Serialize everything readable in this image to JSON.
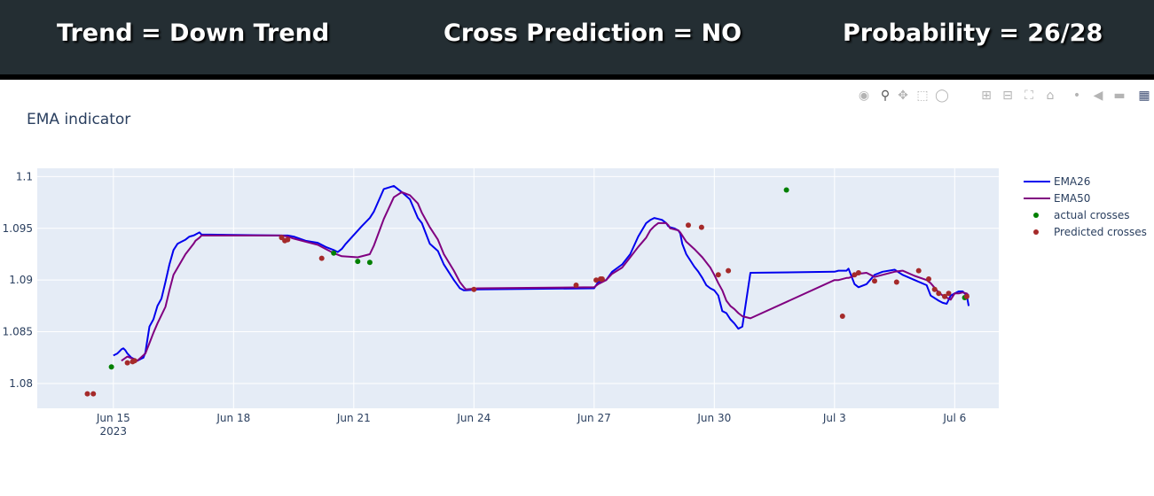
{
  "banner": {
    "trend": "Trend = Down Trend",
    "cross_prediction": "Cross Prediction = NO",
    "probability": "Probability = 26/28"
  },
  "modebar": {
    "icons": [
      "camera-icon",
      "zoom-icon",
      "pan-icon",
      "box-select-icon",
      "lasso-icon",
      "zoom-in-icon",
      "zoom-out-icon",
      "autoscale-icon",
      "reset-axes-icon",
      "spike-lines-icon",
      "hover-closest-icon",
      "hover-compare-icon",
      "plotly-logo-icon"
    ]
  },
  "colors": {
    "ema26": "#0000ee",
    "ema50": "#800080",
    "actual": "#008000",
    "predicted": "#a52a2a",
    "plot_bg": "#e5ecf6",
    "grid": "#ffffff"
  },
  "chart_data": {
    "type": "line",
    "title": "EMA indicator",
    "xlabel": "",
    "ylabel": "",
    "x_axis": {
      "unit": "day offset from Jun 15, 2023",
      "range": [
        -1.9,
        22.1
      ],
      "ticks": [
        {
          "x": 0,
          "label": "Jun 15",
          "sublabel": "2023"
        },
        {
          "x": 3,
          "label": "Jun 18",
          "sublabel": ""
        },
        {
          "x": 6,
          "label": "Jun 21",
          "sublabel": ""
        },
        {
          "x": 9,
          "label": "Jun 24",
          "sublabel": ""
        },
        {
          "x": 12,
          "label": "Jun 27",
          "sublabel": ""
        },
        {
          "x": 15,
          "label": "Jun 30",
          "sublabel": ""
        },
        {
          "x": 18,
          "label": "Jul 3",
          "sublabel": ""
        },
        {
          "x": 21,
          "label": "Jul 6",
          "sublabel": ""
        }
      ]
    },
    "y_axis": {
      "range": [
        1.0776,
        1.1008
      ],
      "ticks": [
        {
          "y": 1.08,
          "label": "1.08"
        },
        {
          "y": 1.085,
          "label": "1.085"
        },
        {
          "y": 1.09,
          "label": "1.09"
        },
        {
          "y": 1.095,
          "label": "1.095"
        },
        {
          "y": 1.1,
          "label": "1.1"
        }
      ]
    },
    "legend": {
      "position": "right",
      "entries": [
        "EMA26",
        "EMA50",
        "actual crosses",
        "Predicted crosses"
      ]
    },
    "series": [
      {
        "name": "EMA26",
        "kind": "line",
        "x": [
          0,
          0.1,
          0.15,
          0.2,
          0.25,
          0.3,
          0.35,
          0.45,
          0.5,
          0.6,
          0.7,
          0.75,
          0.8,
          0.9,
          1,
          1.1,
          1.2,
          1.3,
          1.4,
          1.5,
          1.6,
          1.7,
          1.8,
          1.9,
          2,
          2.05,
          2.15,
          2.2,
          4.2,
          4.35,
          4.5,
          4.8,
          5.1,
          5.3,
          5.5,
          5.6,
          5.7,
          5.8,
          6.2,
          6.4,
          6.5,
          6.75,
          7,
          7.2,
          7.4,
          7.6,
          7.7,
          7.8,
          7.9,
          8.1,
          8.25,
          8.5,
          8.65,
          8.75,
          8.8,
          9.1,
          12,
          12.1,
          12.3,
          12.45,
          12.7,
          12.9,
          13.1,
          13.3,
          13.4,
          13.5,
          13.6,
          13.7,
          13.8,
          13.85,
          13.9,
          14,
          14.1,
          14.15,
          14.2,
          14.3,
          14.4,
          14.5,
          14.6,
          14.7,
          14.8,
          14.9,
          15,
          15.1,
          15.2,
          15.3,
          15.4,
          15.5,
          15.6,
          15.7,
          15.9,
          18,
          18.1,
          18.3,
          18.35,
          18.5,
          18.6,
          18.8,
          19,
          19.2,
          19.5,
          19.7,
          20,
          20.3,
          20.4,
          20.6,
          20.7,
          20.8,
          20.9,
          21,
          21.1,
          21.2,
          21.3,
          21.35
        ],
        "y": [
          1.0827,
          1.0829,
          1.0831,
          1.0833,
          1.0834,
          1.0832,
          1.0829,
          1.0825,
          1.0824,
          1.0822,
          1.0824,
          1.0825,
          1.083,
          1.0855,
          1.0862,
          1.0875,
          1.0882,
          1.0898,
          1.0915,
          1.0929,
          1.0935,
          1.0937,
          1.0939,
          1.0942,
          1.0943,
          1.0944,
          1.0946,
          1.0944,
          1.0943,
          1.0943,
          1.0942,
          1.0938,
          1.0936,
          1.0932,
          1.0929,
          1.0927,
          1.093,
          1.0935,
          1.0952,
          1.096,
          1.0966,
          1.0988,
          1.0991,
          1.0985,
          1.0978,
          1.096,
          1.0955,
          1.0945,
          1.0935,
          1.0928,
          1.0915,
          1.09,
          1.0892,
          1.089,
          1.089,
          1.0891,
          1.0892,
          1.0898,
          1.09,
          1.0908,
          1.0915,
          1.0925,
          1.0942,
          1.0955,
          1.0958,
          1.096,
          1.0959,
          1.0958,
          1.0955,
          1.0952,
          1.0951,
          1.095,
          1.0948,
          1.0945,
          1.0935,
          1.0925,
          1.0919,
          1.0913,
          1.0908,
          1.0902,
          1.0895,
          1.0892,
          1.089,
          1.0885,
          1.087,
          1.0868,
          1.0862,
          1.0858,
          1.0853,
          1.0855,
          1.0907,
          1.0908,
          1.0909,
          1.0909,
          1.0911,
          1.0896,
          1.0893,
          1.0896,
          1.0905,
          1.0908,
          1.091,
          1.0905,
          1.09,
          1.0895,
          1.0885,
          1.088,
          1.0878,
          1.0877,
          1.0885,
          1.0887,
          1.0889,
          1.0889,
          1.0885,
          1.0875
        ]
      },
      {
        "name": "EMA50",
        "kind": "line",
        "x": [
          0.2,
          0.35,
          0.6,
          0.8,
          0.9,
          1,
          1.1,
          1.3,
          1.4,
          1.5,
          1.8,
          2,
          2.05,
          2.15,
          2.2,
          4.2,
          4.35,
          4.5,
          4.8,
          5.1,
          5.3,
          5.5,
          5.7,
          6.1,
          6.4,
          6.5,
          6.75,
          7,
          7.2,
          7.4,
          7.6,
          7.7,
          7.8,
          7.9,
          8.1,
          8.25,
          8.5,
          8.65,
          8.75,
          8.8,
          9.1,
          12,
          12.1,
          12.3,
          12.45,
          12.7,
          12.9,
          13.1,
          13.3,
          13.4,
          13.5,
          13.6,
          13.7,
          13.8,
          13.85,
          13.9,
          14,
          14.1,
          14.15,
          14.2,
          14.3,
          14.5,
          14.7,
          14.9,
          15,
          15.1,
          15.2,
          15.3,
          15.4,
          15.5,
          15.6,
          15.7,
          15.9,
          18,
          18.1,
          18.3,
          18.35,
          18.5,
          18.6,
          18.8,
          19,
          19.2,
          19.5,
          19.7,
          20,
          20.3,
          20.4,
          20.6,
          20.7,
          20.8,
          20.9,
          21,
          21.1,
          21.2,
          21.3,
          21.35
        ],
        "y": [
          1.0822,
          1.0826,
          1.0822,
          1.0829,
          1.0839,
          1.0849,
          1.0858,
          1.0874,
          1.089,
          1.0905,
          1.0925,
          1.0935,
          1.0938,
          1.0941,
          1.0943,
          1.0943,
          1.0942,
          1.094,
          1.0937,
          1.0934,
          1.093,
          1.0926,
          1.0923,
          1.0922,
          1.0925,
          1.0933,
          1.0959,
          1.098,
          1.0985,
          1.0982,
          1.0974,
          1.0965,
          1.0958,
          1.0951,
          1.0939,
          1.0925,
          1.0909,
          1.0898,
          1.0893,
          1.0891,
          1.0892,
          1.0893,
          1.0896,
          1.09,
          1.0906,
          1.0912,
          1.0922,
          1.0932,
          1.0941,
          1.0948,
          1.0952,
          1.0955,
          1.0955,
          1.0955,
          1.0953,
          1.095,
          1.0949,
          1.0948,
          1.0946,
          1.0943,
          1.0937,
          1.093,
          1.0922,
          1.0912,
          1.0905,
          1.0897,
          1.089,
          1.088,
          1.0875,
          1.0872,
          1.0868,
          1.0865,
          1.0863,
          1.09,
          1.09,
          1.0902,
          1.0902,
          1.0904,
          1.0906,
          1.0907,
          1.0903,
          1.0905,
          1.0908,
          1.0909,
          1.0904,
          1.09,
          1.0897,
          1.0888,
          1.0885,
          1.0883,
          1.0881,
          1.0887,
          1.0887,
          1.0888,
          1.0887,
          1.0885
        ]
      },
      {
        "name": "actual crosses",
        "kind": "markers",
        "x": [
          -0.05,
          5.5,
          6.1,
          6.4,
          16.8,
          21.25
        ],
        "y": [
          1.0816,
          1.0926,
          1.0918,
          1.0917,
          1.0987,
          1.0883
        ]
      },
      {
        "name": "Predicted crosses",
        "kind": "markers",
        "x": [
          -0.65,
          -0.5,
          0.35,
          0.48,
          0.53,
          4.2,
          4.28,
          4.35,
          5.2,
          9,
          11.55,
          12.05,
          12.16,
          12.2,
          14.35,
          14.68,
          15.1,
          15.35,
          18.2,
          18.5,
          18.6,
          19,
          19.55,
          20.1,
          20.35,
          20.5,
          20.6,
          20.75,
          20.85,
          21.3
        ],
        "y": [
          1.079,
          1.079,
          1.082,
          1.0821,
          1.0822,
          1.0941,
          1.0938,
          1.0939,
          1.0921,
          1.0891,
          1.0895,
          1.09,
          1.0901,
          1.0901,
          1.0953,
          1.0951,
          1.0905,
          1.0909,
          1.0865,
          1.0905,
          1.0907,
          1.0899,
          1.0898,
          1.0909,
          1.0901,
          1.0891,
          1.0887,
          1.0884,
          1.0887,
          1.0884
        ]
      }
    ]
  }
}
